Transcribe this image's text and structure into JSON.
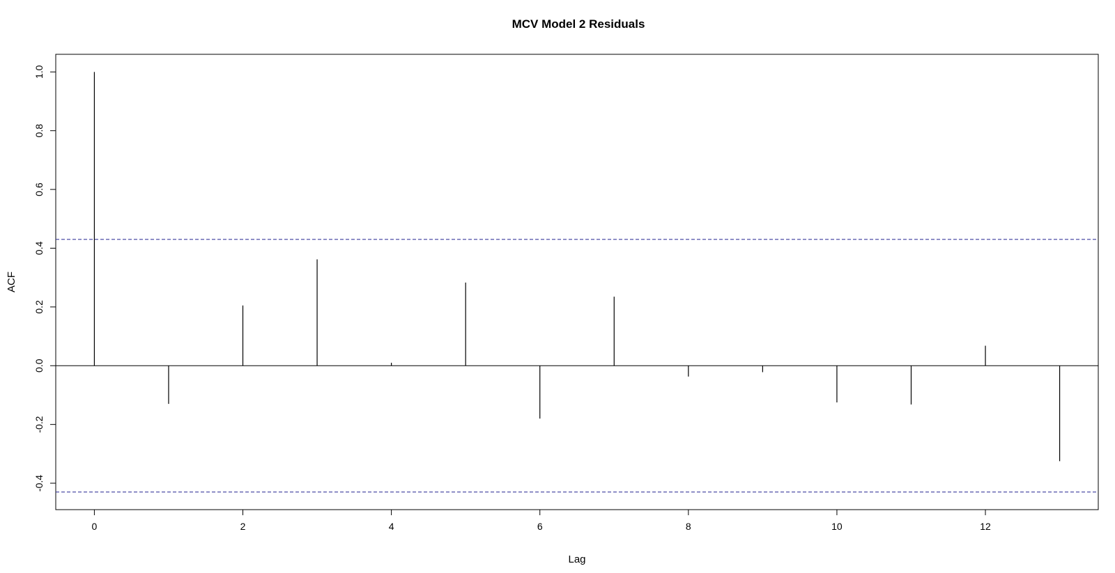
{
  "chart_data": {
    "type": "bar",
    "title": "MCV Model 2 Residuals",
    "xlabel": "Lag",
    "ylabel": "ACF",
    "lags": [
      0,
      1,
      2,
      3,
      4,
      5,
      6,
      7,
      8,
      9,
      10,
      11,
      12,
      13
    ],
    "values": [
      1.0,
      -0.13,
      0.205,
      0.362,
      0.01,
      0.283,
      -0.18,
      0.235,
      -0.037,
      -0.022,
      -0.125,
      -0.132,
      0.068,
      -0.325
    ],
    "xlim": [
      -0.52,
      13.52
    ],
    "ylim": [
      -0.49,
      1.06
    ],
    "x_ticks": [
      "0",
      "2",
      "4",
      "6",
      "8",
      "10",
      "12"
    ],
    "y_ticks": [
      "-0.4",
      "-0.2",
      "0.0",
      "0.2",
      "0.4",
      "0.6",
      "0.8",
      "1.0"
    ],
    "confidence_bounds": [
      0.43,
      -0.43
    ],
    "zero_line": 0,
    "grid": false,
    "legend": "none",
    "colors": {
      "bars": "#000000",
      "confidence_line": "#3b3b9e",
      "frame": "#000000"
    }
  }
}
